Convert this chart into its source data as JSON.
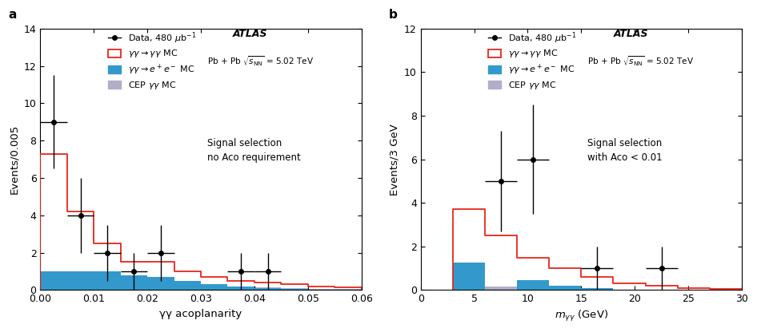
{
  "panel_a": {
    "title_label": "a",
    "xlabel": "γγ acoplanarity",
    "ylabel": "Events/0.005",
    "xlim": [
      0.0,
      0.06
    ],
    "ylim": [
      0,
      14
    ],
    "yticks": [
      0,
      2,
      4,
      6,
      8,
      10,
      12,
      14
    ],
    "xticks": [
      0.0,
      0.01,
      0.02,
      0.03,
      0.04,
      0.05,
      0.06
    ],
    "annotation": "Signal selection\nno Aco requirement",
    "red_hist_edges": [
      0.0,
      0.005,
      0.01,
      0.015,
      0.02,
      0.025,
      0.03,
      0.035,
      0.04,
      0.045,
      0.05,
      0.055,
      0.06
    ],
    "red_hist_values": [
      7.3,
      4.2,
      2.5,
      1.5,
      1.5,
      1.0,
      0.7,
      0.5,
      0.4,
      0.3,
      0.2,
      0.15
    ],
    "blue_hist_edges": [
      0.0,
      0.005,
      0.01,
      0.015,
      0.02,
      0.025,
      0.03,
      0.035,
      0.04,
      0.045,
      0.05,
      0.055,
      0.06
    ],
    "blue_hist_values": [
      1.0,
      1.0,
      1.0,
      0.8,
      0.7,
      0.5,
      0.3,
      0.2,
      0.1,
      0.05,
      0.0,
      0.0
    ],
    "gray_hist_edges": [
      0.0,
      0.005,
      0.01,
      0.015,
      0.02,
      0.025,
      0.03,
      0.035,
      0.04,
      0.045,
      0.05,
      0.055,
      0.06
    ],
    "gray_hist_values": [
      0.5,
      0.5,
      0.45,
      0.4,
      0.35,
      0.3,
      0.25,
      0.2,
      0.15,
      0.1,
      0.08,
      0.05
    ],
    "data_x": [
      0.0025,
      0.0075,
      0.0125,
      0.0175,
      0.0225,
      0.0375,
      0.0425
    ],
    "data_y": [
      9.0,
      4.0,
      2.0,
      1.0,
      2.0,
      1.0,
      1.0
    ],
    "data_xerr": [
      0.0025,
      0.0025,
      0.0025,
      0.0025,
      0.0025,
      0.0025,
      0.0025
    ],
    "data_yerr": [
      2.5,
      2.0,
      1.5,
      1.0,
      1.5,
      1.0,
      1.0
    ]
  },
  "panel_b": {
    "title_label": "b",
    "xlabel": "$m_{\\gamma\\gamma}$ (GeV)",
    "ylabel": "Events/3 GeV",
    "xlim": [
      0,
      30
    ],
    "ylim": [
      0,
      12
    ],
    "yticks": [
      0,
      2,
      4,
      6,
      8,
      10,
      12
    ],
    "xticks": [
      0,
      5,
      10,
      15,
      20,
      25,
      30
    ],
    "annotation": "Signal selection\nwith Aco < 0.01",
    "red_hist_edges": [
      3,
      6,
      9,
      12,
      15,
      18,
      21,
      24,
      27,
      30
    ],
    "red_hist_values": [
      3.7,
      2.5,
      1.5,
      1.0,
      0.6,
      0.3,
      0.2,
      0.1,
      0.05
    ],
    "blue_hist_edges": [
      3,
      6,
      9,
      12,
      15,
      18,
      21,
      24,
      27,
      30
    ],
    "blue_hist_values": [
      1.25,
      0.0,
      0.45,
      0.2,
      0.1,
      0.0,
      0.0,
      0.0,
      0.0
    ],
    "gray_hist_edges": [
      3,
      6,
      9,
      12,
      15,
      18,
      21,
      24,
      27,
      30
    ],
    "gray_hist_values": [
      0.25,
      0.15,
      0.1,
      0.08,
      0.05,
      0.03,
      0.02,
      0.01,
      0.0
    ],
    "data_x": [
      7.5,
      10.5,
      16.5,
      22.5
    ],
    "data_y": [
      5.0,
      6.0,
      1.0,
      1.0
    ],
    "data_xerr": [
      1.5,
      1.5,
      1.5,
      1.5
    ],
    "data_yerr": [
      2.3,
      2.5,
      1.0,
      1.0
    ]
  },
  "red_color": "#e8251a",
  "blue_color": "#3399cc",
  "gray_color": "#b0aec8",
  "data_label": "Data, 480 μb$^{-1}$",
  "atlas_label": "ATLAS",
  "collision_label": "Pb + Pb $\\sqrt{s_{\\mathrm{NN}}}$ = 5.02 TeV"
}
